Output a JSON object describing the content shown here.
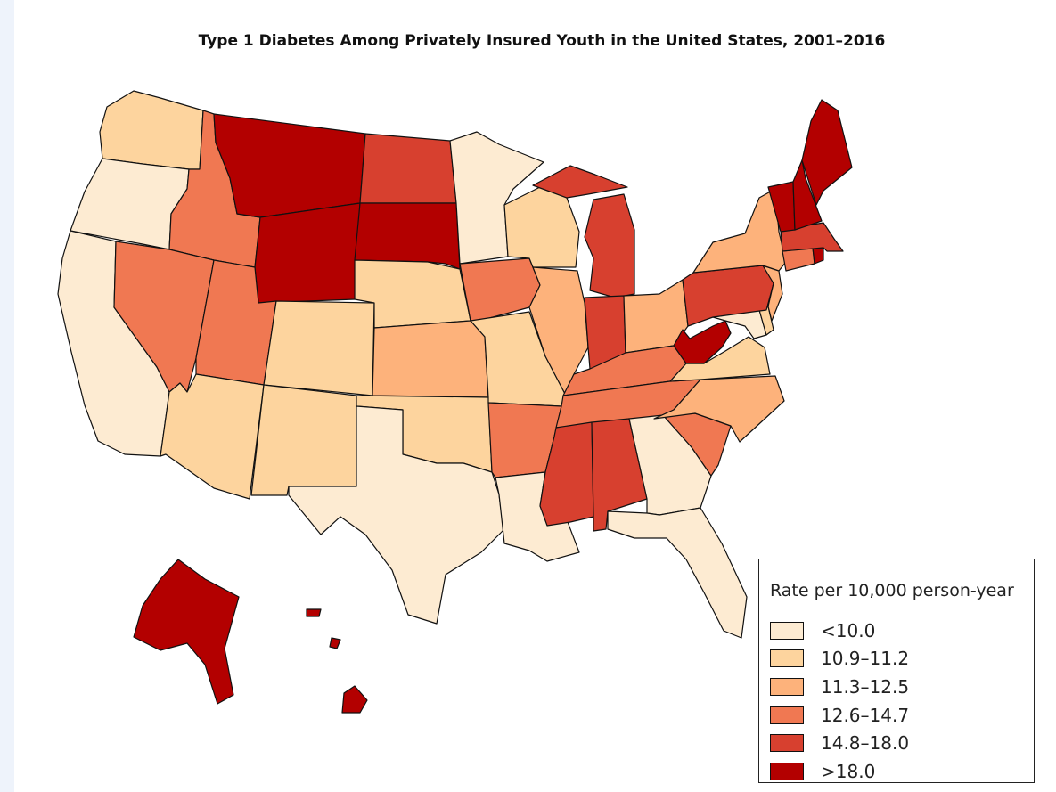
{
  "map": {
    "title": "Type 1 Diabetes Among Privately Insured Youth in the United States, 2001–2016",
    "legend": {
      "title": "Rate per 10,000 person-year",
      "classes": [
        {
          "label": "<10.0",
          "color": "#fdebd2"
        },
        {
          "label": "10.9–11.2",
          "color": "#fdd49e"
        },
        {
          "label": "11.3–12.5",
          "color": "#fdb27b"
        },
        {
          "label": "12.6–14.7",
          "color": "#f07852"
        },
        {
          "label": "14.8–18.0",
          "color": "#d7402f"
        },
        {
          "label": ">18.0",
          "color": "#b30000"
        }
      ]
    },
    "states": [
      {
        "name": "Washington",
        "class": 1
      },
      {
        "name": "Oregon",
        "class": 0
      },
      {
        "name": "California",
        "class": 0
      },
      {
        "name": "Idaho",
        "class": 3
      },
      {
        "name": "Nevada",
        "class": 3
      },
      {
        "name": "Montana",
        "class": 5
      },
      {
        "name": "Wyoming",
        "class": 5
      },
      {
        "name": "Utah",
        "class": 3
      },
      {
        "name": "Arizona",
        "class": 1
      },
      {
        "name": "Colorado",
        "class": 1
      },
      {
        "name": "New Mexico",
        "class": 1
      },
      {
        "name": "North Dakota",
        "class": 4
      },
      {
        "name": "South Dakota",
        "class": 5
      },
      {
        "name": "Nebraska",
        "class": 1
      },
      {
        "name": "Kansas",
        "class": 2
      },
      {
        "name": "Oklahoma",
        "class": 1
      },
      {
        "name": "Texas",
        "class": 0
      },
      {
        "name": "Minnesota",
        "class": 0
      },
      {
        "name": "Iowa",
        "class": 3
      },
      {
        "name": "Missouri",
        "class": 1
      },
      {
        "name": "Arkansas",
        "class": 3
      },
      {
        "name": "Louisiana",
        "class": 0
      },
      {
        "name": "Wisconsin",
        "class": 1
      },
      {
        "name": "Illinois",
        "class": 2
      },
      {
        "name": "Michigan",
        "class": 4
      },
      {
        "name": "Indiana",
        "class": 4
      },
      {
        "name": "Ohio",
        "class": 2
      },
      {
        "name": "Kentucky",
        "class": 3
      },
      {
        "name": "Tennessee",
        "class": 3
      },
      {
        "name": "Mississippi",
        "class": 4
      },
      {
        "name": "Alabama",
        "class": 4
      },
      {
        "name": "Georgia",
        "class": 0
      },
      {
        "name": "Florida",
        "class": 0
      },
      {
        "name": "South Carolina",
        "class": 3
      },
      {
        "name": "North Carolina",
        "class": 2
      },
      {
        "name": "Virginia",
        "class": 1
      },
      {
        "name": "West Virginia",
        "class": 5
      },
      {
        "name": "Maryland",
        "class": 0
      },
      {
        "name": "Delaware",
        "class": 1
      },
      {
        "name": "Pennsylvania",
        "class": 4
      },
      {
        "name": "New Jersey",
        "class": 2
      },
      {
        "name": "New York",
        "class": 2
      },
      {
        "name": "Connecticut",
        "class": 3
      },
      {
        "name": "Rhode Island",
        "class": 5
      },
      {
        "name": "Massachusetts",
        "class": 4
      },
      {
        "name": "Vermont",
        "class": 5
      },
      {
        "name": "New Hampshire",
        "class": 5
      },
      {
        "name": "Maine",
        "class": 5
      },
      {
        "name": "Alaska",
        "class": 5
      },
      {
        "name": "Hawaii",
        "class": 5
      }
    ]
  }
}
